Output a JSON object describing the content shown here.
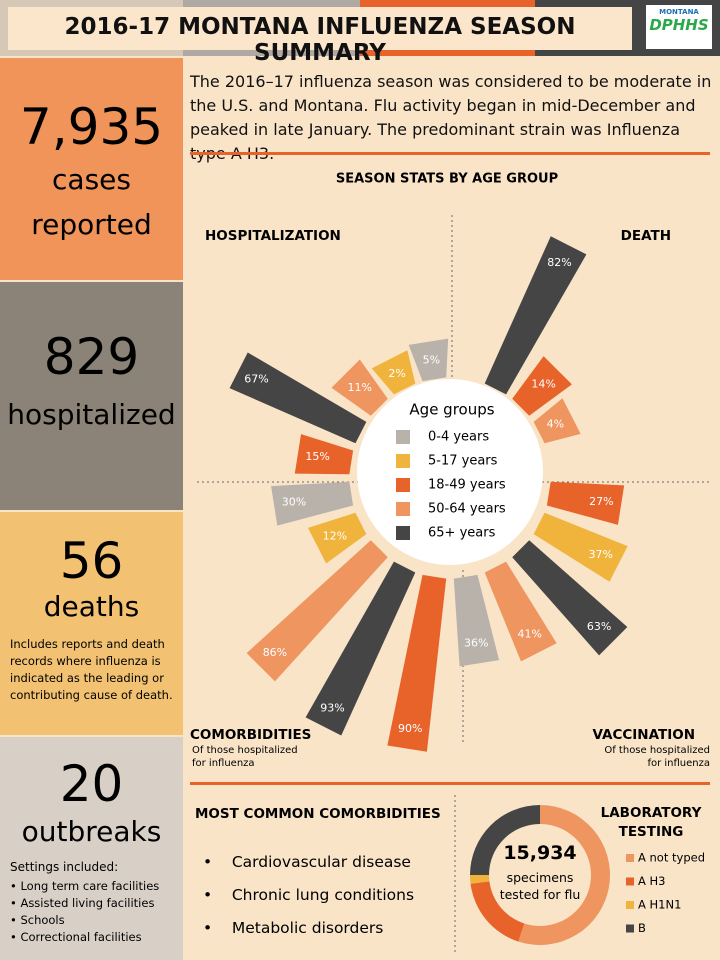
{
  "header": {
    "title": "2016-17 MONTANA INFLUENZA SEASON SUMMARY",
    "logo_top": "MONTANA",
    "logo_main": "DPHHS"
  },
  "intro": "The 2016–17 influenza season was considered to be moderate in the U.S. and Montana. Flu activity began in mid-December and peaked in late January. The predominant strain was Influenza type A H3.",
  "stats": [
    {
      "number": "7,935",
      "lines": [
        "cases",
        "reported"
      ]
    },
    {
      "number": "829",
      "lines": [
        "hospitalized"
      ]
    },
    {
      "number": "56",
      "lines": [
        "deaths"
      ],
      "note": "Includes reports and death records where influenza is indicated as the leading or contributing cause of death."
    },
    {
      "number": "20",
      "lines": [
        "outbreaks"
      ],
      "note": "Settings included:",
      "items": [
        "Long term care facilities",
        "Assisted living facilities",
        "Schools",
        "Correctional facilities"
      ]
    }
  ],
  "chart_data": [
    {
      "type": "radial-bar",
      "title": "SEASON STATS BY AGE GROUP",
      "legend_title": "Age groups",
      "groups": [
        {
          "name": "0-4 years",
          "color": "#b8b2ab"
        },
        {
          "name": "5-17 years",
          "color": "#f0b43c"
        },
        {
          "name": "18-49 years",
          "color": "#e8632a"
        },
        {
          "name": "50-64 years",
          "color": "#ee9560"
        },
        {
          "name": "65+ years",
          "color": "#454545"
        }
      ],
      "series": [
        {
          "name": "HOSPITALIZATION",
          "values": [
            5,
            2,
            11,
            67,
            15
          ],
          "value_labels": [
            "5%",
            "2%",
            "11%",
            "67%",
            "15%"
          ],
          "colors": [
            "#b8b2ab",
            "#f0b43c",
            "#ee9560",
            "#454545",
            "#e8632a"
          ]
        },
        {
          "name": "DEATH",
          "values": [
            null,
            82,
            14,
            4,
            null
          ],
          "value_labels": [
            null,
            "82%",
            "14%",
            "4%",
            null
          ],
          "colors": [
            null,
            "#454545",
            "#e8632a",
            "#ee9560",
            null
          ]
        },
        {
          "name": "COMORBIDITIES",
          "subtitle": "Of those hospitalized for influenza",
          "values": [
            30,
            12,
            86,
            93,
            90
          ],
          "value_labels": [
            "30%",
            "12%",
            "86%",
            "93%",
            "90%"
          ],
          "colors": [
            "#b8b2ab",
            "#f0b43c",
            "#ee9560",
            "#454545",
            "#e8632a"
          ]
        },
        {
          "name": "VACCINATION",
          "subtitle": "Of those hospitalized for influenza",
          "values": [
            27,
            37,
            63,
            41,
            36
          ],
          "value_labels": [
            "27%",
            "37%",
            "63%",
            "41%",
            "36%"
          ],
          "colors": [
            "#e8632a",
            "#f0b43c",
            "#454545",
            "#ee9560",
            "#b8b2ab"
          ]
        }
      ]
    },
    {
      "type": "donut",
      "title": "LABORATORY TESTING",
      "center_number": "15,934",
      "center_text": "specimens tested for flu",
      "categories": [
        "A not typed",
        "A H3",
        "A H1N1",
        "B"
      ],
      "values": [
        55,
        18,
        2,
        25
      ],
      "colors": [
        "#ee9560",
        "#e8632a",
        "#f0b43c",
        "#454545"
      ]
    }
  ],
  "comorbidities": {
    "title": "MOST COMMON COMORBIDITIES",
    "items": [
      "Cardiovascular disease",
      "Chronic lung conditions",
      "Metabolic disorders"
    ]
  }
}
